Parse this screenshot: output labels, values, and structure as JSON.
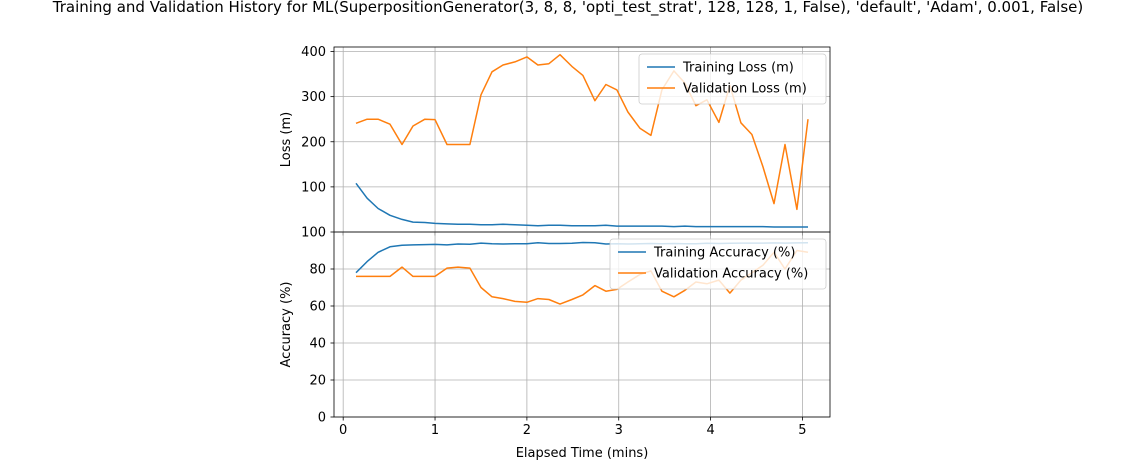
{
  "figure_title": "Training and Validation History for ML(SuperpositionGenerator(3, 8, 8, 'opti_test_strat', 128, 128, 1, False), 'default', 'Adam', 0.001, False)",
  "colors": {
    "training": "#1f77b4",
    "validation": "#ff7f0e",
    "grid": "#b0b0b0",
    "axis": "#000000"
  },
  "chart_data": [
    {
      "type": "line",
      "title": "",
      "xlabel": "",
      "ylabel": "Loss (m)",
      "xlim": [
        -0.1,
        5.3
      ],
      "ylim": [
        0,
        410
      ],
      "xticks": [
        0,
        1,
        2,
        3,
        4,
        5
      ],
      "yticks": [
        100,
        200,
        300,
        400
      ],
      "ytick_labels": [
        "100",
        "200",
        "300",
        "400"
      ],
      "grid": true,
      "legend_position": "upper right",
      "x": [
        0.14,
        0.26,
        0.38,
        0.51,
        0.64,
        0.76,
        0.89,
        1.0,
        1.13,
        1.25,
        1.38,
        1.5,
        1.62,
        1.74,
        1.87,
        2.0,
        2.12,
        2.24,
        2.36,
        2.49,
        2.61,
        2.74,
        2.86,
        2.98,
        3.1,
        3.23,
        3.35,
        3.47,
        3.6,
        3.72,
        3.84,
        3.96,
        4.09,
        4.21,
        4.33,
        4.45,
        4.57,
        4.69,
        4.81,
        4.94,
        5.06
      ],
      "series": [
        {
          "name": "Training Loss (m)",
          "color": "#1f77b4",
          "values": [
            108,
            75,
            52,
            37,
            28,
            22,
            21,
            19,
            18,
            17,
            17,
            16,
            16,
            17,
            16,
            15,
            14,
            15,
            15,
            14,
            14,
            14,
            15,
            13,
            13,
            13,
            13,
            13,
            12,
            13,
            12,
            12,
            12,
            12,
            12,
            12,
            12,
            11,
            11,
            11,
            11
          ]
        },
        {
          "name": "Validation Loss (m)",
          "color": "#ff7f0e",
          "values": [
            241,
            250,
            250,
            239,
            194,
            235,
            250,
            249,
            194,
            194,
            194,
            304,
            355,
            370,
            377,
            388,
            370,
            373,
            393,
            367,
            347,
            291,
            327,
            315,
            266,
            230,
            214,
            315,
            357,
            330,
            280,
            293,
            243,
            325,
            242,
            216,
            145,
            63,
            194,
            50,
            250
          ]
        }
      ]
    },
    {
      "type": "line",
      "title": "",
      "xlabel": "Elapsed Time (mins)",
      "ylabel": "Accuracy (%)",
      "xlim": [
        -0.1,
        5.3
      ],
      "ylim": [
        0,
        100
      ],
      "xticks": [
        0,
        1,
        2,
        3,
        4,
        5
      ],
      "xtick_labels": [
        "0",
        "1",
        "2",
        "3",
        "4",
        "5"
      ],
      "yticks": [
        0,
        20,
        40,
        60,
        80,
        100
      ],
      "ytick_labels": [
        "0",
        "20",
        "40",
        "60",
        "80",
        "100"
      ],
      "grid": true,
      "legend_position": "upper right",
      "x": [
        0.14,
        0.26,
        0.38,
        0.51,
        0.64,
        0.76,
        0.89,
        1.0,
        1.13,
        1.25,
        1.38,
        1.5,
        1.62,
        1.74,
        1.87,
        2.0,
        2.12,
        2.24,
        2.36,
        2.49,
        2.61,
        2.74,
        2.86,
        2.98,
        3.1,
        3.23,
        3.35,
        3.47,
        3.6,
        3.72,
        3.84,
        3.96,
        4.09,
        4.21,
        4.33,
        4.45,
        4.57,
        4.69,
        4.81,
        4.94,
        5.06
      ],
      "series": [
        {
          "name": "Training Accuracy (%)",
          "color": "#1f77b4",
          "values": [
            78,
            84,
            89,
            92,
            92.8,
            93,
            93.2,
            93.3,
            93,
            93.5,
            93.4,
            94,
            93.6,
            93.5,
            93.6,
            93.7,
            94.2,
            93.8,
            93.8,
            93.9,
            94.3,
            94.2,
            93.5,
            93.6,
            93.5,
            93.6,
            93.8,
            93.7,
            93.8,
            93.6,
            93.7,
            93.9,
            93.8,
            93.9,
            94,
            94,
            94,
            94.1,
            94,
            94.1,
            94.2
          ]
        },
        {
          "name": "Validation Accuracy (%)",
          "color": "#ff7f0e",
          "values": [
            76,
            76,
            76,
            76,
            81,
            76,
            76,
            76,
            80.5,
            81,
            80.5,
            70,
            65,
            64,
            62.5,
            62,
            64,
            63.5,
            61,
            63.5,
            66,
            71,
            68,
            69,
            73,
            77,
            79,
            68,
            65,
            68.5,
            73,
            72,
            74,
            67,
            74,
            78,
            82,
            89,
            80,
            90,
            89
          ]
        }
      ]
    }
  ]
}
